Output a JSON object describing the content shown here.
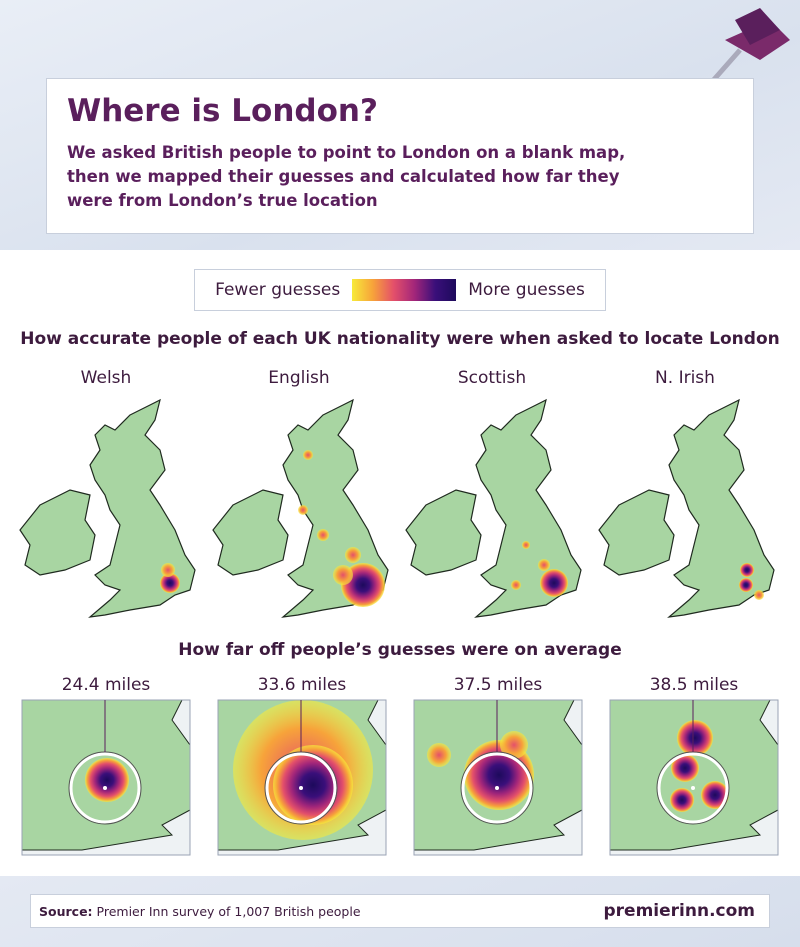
{
  "header": {
    "title": "Where is London?",
    "subtitle": "We asked British people to point to London on a blank map, then we mapped their guesses and calculated how far they were from London’s true location"
  },
  "legend": {
    "low": "Fewer guesses",
    "high": "More guesses"
  },
  "maps": {
    "title": "How accurate people of each UK nationality were when asked to locate London",
    "panels": [
      {
        "label": "Welsh"
      },
      {
        "label": "English"
      },
      {
        "label": "Scottish"
      },
      {
        "label": "N. Irish"
      }
    ]
  },
  "distances": {
    "title": "How far off people’s guesses were on average",
    "panels": [
      {
        "label": "24.4 miles"
      },
      {
        "label": "33.6 miles"
      },
      {
        "label": "37.5 miles"
      },
      {
        "label": "38.5 miles"
      }
    ]
  },
  "footer": {
    "source_label": "Source:",
    "source": "Premier Inn survey of 1,007 British people",
    "site": "premierinn.com"
  }
}
